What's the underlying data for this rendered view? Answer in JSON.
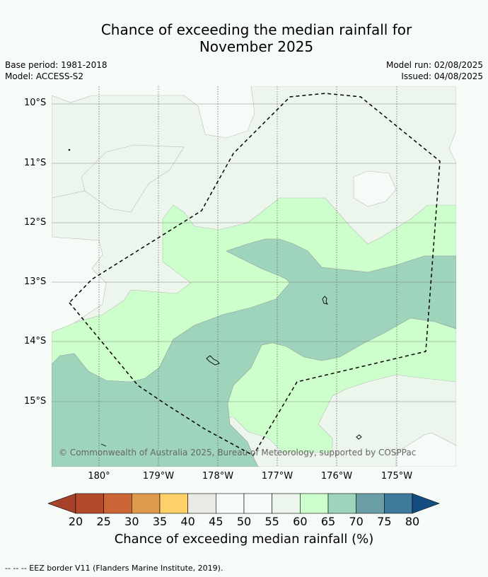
{
  "title_line1": "Chance of exceeding the median rainfall for",
  "title_line2": "November 2025",
  "meta_left": [
    "Base period: 1981-2018",
    "Model: ACCESS-S2"
  ],
  "meta_right": [
    "Model run: 02/08/2025",
    "Issued: 04/08/2025"
  ],
  "lat_labels": [
    "10°S",
    "11°S",
    "12°S",
    "13°S",
    "14°S",
    "15°S"
  ],
  "lon_labels": [
    "180°",
    "179°W",
    "178°W",
    "177°W",
    "176°W",
    "175°W"
  ],
  "copyright": "© Commonwealth of Australia 2025, Bureau of Meteorology, supported by COSPPac",
  "colorbar": {
    "ticks": [
      "20",
      "25",
      "30",
      "35",
      "40",
      "45",
      "50",
      "55",
      "60",
      "65",
      "70",
      "75",
      "80"
    ],
    "colors": [
      "#a8412b",
      "#b34a2a",
      "#cc6535",
      "#e09a4d",
      "#fdd06a",
      "#e9e9e6",
      "#f7fbf7",
      "#f7fbf7",
      "#ecf6ec",
      "#ccffcc",
      "#9ed3bc",
      "#6a9fa7",
      "#3e7a9b",
      "#134c80"
    ],
    "label": "Chance of exceeding median rainfall (%)"
  },
  "footnote": "--  --  -- EEZ border V11 (Flanders Marine Institute, 2019)."
}
